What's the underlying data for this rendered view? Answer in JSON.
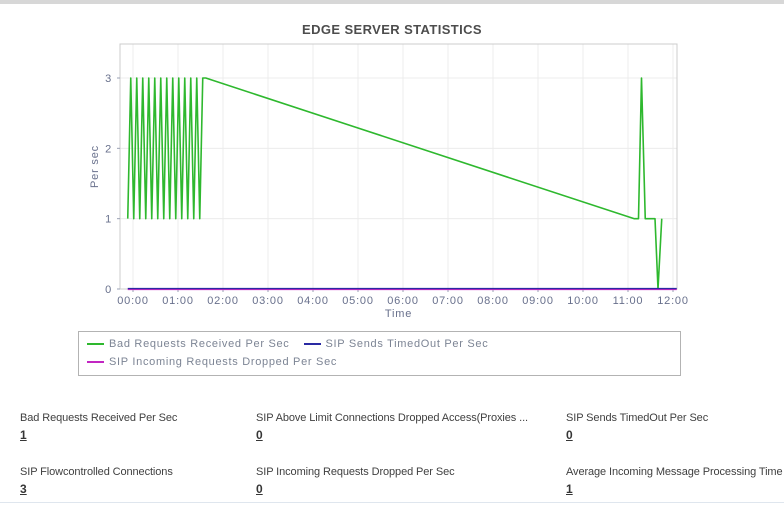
{
  "page": {
    "title": "EDGE SERVER STATISTICS"
  },
  "chart_data": {
    "type": "line",
    "title": "EDGE SERVER STATISTICS",
    "xlabel": "Time",
    "ylabel": "Per sec",
    "x_unit": "minutes-since-00:00",
    "ylim": [
      0,
      3.5
    ],
    "grid": true,
    "legend_position": "bottom",
    "x_ticks": [
      {
        "min": 0,
        "label": "00:00"
      },
      {
        "min": 60,
        "label": "01:00"
      },
      {
        "min": 120,
        "label": "02:00"
      },
      {
        "min": 180,
        "label": "03:00"
      },
      {
        "min": 240,
        "label": "04:00"
      },
      {
        "min": 300,
        "label": "05:00"
      },
      {
        "min": 360,
        "label": "06:00"
      },
      {
        "min": 420,
        "label": "07:00"
      },
      {
        "min": 480,
        "label": "08:00"
      },
      {
        "min": 540,
        "label": "09:00"
      },
      {
        "min": 600,
        "label": "10:00"
      },
      {
        "min": 660,
        "label": "11:00"
      },
      {
        "min": 720,
        "label": "12:00"
      }
    ],
    "y_ticks": [
      0,
      1,
      2,
      3
    ],
    "series": [
      {
        "name": "Bad Requests Received Per Sec",
        "color": "#2eb82e",
        "width": 1.6,
        "points": [
          [
            -7,
            1
          ],
          [
            -3,
            3
          ],
          [
            1,
            1
          ],
          [
            5,
            3
          ],
          [
            9,
            1
          ],
          [
            13,
            3
          ],
          [
            17,
            1
          ],
          [
            21,
            3
          ],
          [
            25,
            1
          ],
          [
            29,
            3
          ],
          [
            33,
            1
          ],
          [
            37,
            3
          ],
          [
            41,
            1
          ],
          [
            45,
            3
          ],
          [
            49,
            1
          ],
          [
            53,
            3
          ],
          [
            57,
            1
          ],
          [
            61,
            3
          ],
          [
            65,
            1
          ],
          [
            69,
            3
          ],
          [
            73,
            1
          ],
          [
            77,
            3
          ],
          [
            81,
            1
          ],
          [
            85,
            3
          ],
          [
            89,
            1
          ],
          [
            93,
            3
          ],
          [
            97,
            3
          ],
          [
            668,
            1
          ],
          [
            674,
            1
          ],
          [
            678,
            3
          ],
          [
            683,
            1
          ],
          [
            696,
            1
          ],
          [
            700,
            0
          ],
          [
            705,
            1
          ]
        ]
      },
      {
        "name": "SIP Sends TimedOut Per Sec",
        "color": "#2a2aa3",
        "width": 1.2,
        "points": [
          [
            -7,
            0
          ],
          [
            725,
            0
          ]
        ]
      },
      {
        "name": "SIP Incoming Requests Dropped Per Sec",
        "color": "#c226c2",
        "width": 1.2,
        "points": [
          [
            -7,
            0
          ],
          [
            725,
            0
          ]
        ]
      }
    ]
  },
  "stats": {
    "rows": [
      [
        {
          "label": "Bad Requests Received Per Sec",
          "value": "1"
        },
        {
          "label": "SIP Above Limit Connections Dropped Access(Proxies ...",
          "value": "0"
        },
        {
          "label": "SIP Sends TimedOut Per Sec",
          "value": "0"
        }
      ],
      [
        {
          "label": "SIP Flowcontrolled Connections",
          "value": "3"
        },
        {
          "label": "SIP Incoming Requests Dropped Per Sec",
          "value": "0"
        },
        {
          "label": "Average Incoming Message Processing Time",
          "value": "1"
        }
      ]
    ]
  }
}
